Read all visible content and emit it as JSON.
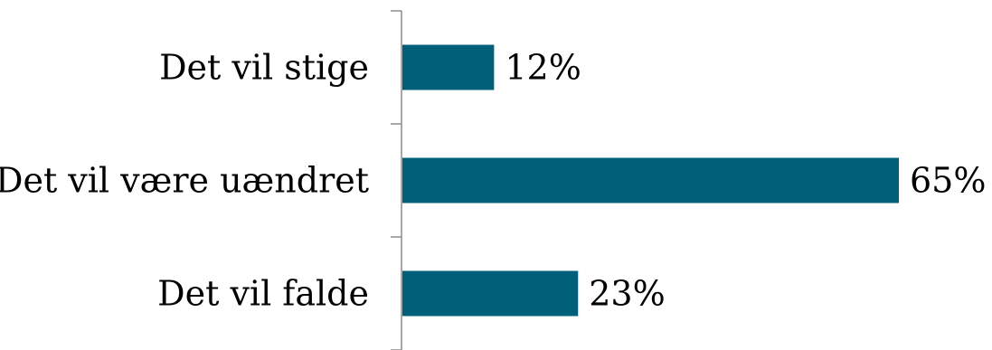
{
  "chart_data": {
    "type": "bar",
    "orientation": "horizontal",
    "categories": [
      "Det vil stige",
      "Det vil være uændret",
      "Det vil falde"
    ],
    "values": [
      12,
      65,
      23
    ],
    "value_labels": [
      "12%",
      "65%",
      "23%"
    ],
    "unit": "%",
    "xlim": [
      0,
      65
    ],
    "grid": false,
    "legend": false,
    "bar_color": "#00607a",
    "axis_color": "#8c8c8c"
  }
}
